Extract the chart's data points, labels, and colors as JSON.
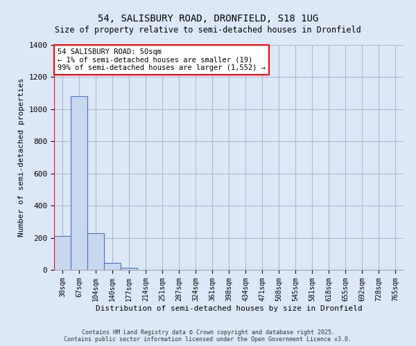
{
  "title_line1": "54, SALISBURY ROAD, DRONFIELD, S18 1UG",
  "title_line2": "Size of property relative to semi-detached houses in Dronfield",
  "xlabel": "Distribution of semi-detached houses by size in Dronfield",
  "ylabel": "Number of semi-detached properties",
  "categories": [
    "30sqm",
    "67sqm",
    "104sqm",
    "140sqm",
    "177sqm",
    "214sqm",
    "251sqm",
    "287sqm",
    "324sqm",
    "361sqm",
    "398sqm",
    "434sqm",
    "471sqm",
    "508sqm",
    "545sqm",
    "581sqm",
    "618sqm",
    "655sqm",
    "692sqm",
    "728sqm",
    "765sqm"
  ],
  "values": [
    210,
    1080,
    230,
    45,
    15,
    0,
    0,
    0,
    0,
    0,
    0,
    0,
    0,
    0,
    0,
    0,
    0,
    0,
    0,
    0,
    0
  ],
  "bar_color": "#c8d8f0",
  "bar_edge_color": "#4472c4",
  "grid_color": "#b0b8d0",
  "bg_color": "#dce8f8",
  "annotation_title": "54 SALISBURY ROAD: 50sqm",
  "annotation_line1": "← 1% of semi-detached houses are smaller (19)",
  "annotation_line2": "99% of semi-detached houses are larger (1,552) →",
  "ylim": [
    0,
    1400
  ],
  "yticks": [
    0,
    200,
    400,
    600,
    800,
    1000,
    1200,
    1400
  ],
  "footer_line1": "Contains HM Land Registry data © Crown copyright and database right 2025.",
  "footer_line2": "Contains public sector information licensed under the Open Government Licence v3.0."
}
